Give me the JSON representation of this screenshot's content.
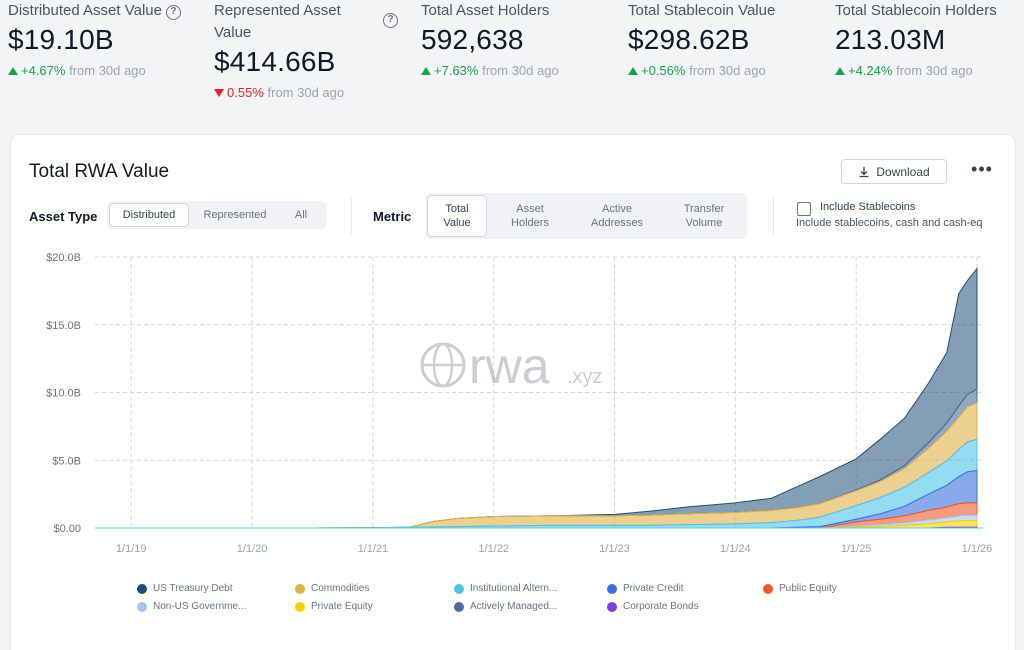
{
  "stats": [
    {
      "label": "Distributed Asset Value",
      "has_help": true,
      "value": "$19.10B",
      "direction": "up",
      "change": "+4.67%",
      "suffix": "from 30d ago"
    },
    {
      "label": "Represented Asset Value",
      "has_help": true,
      "value": "$414.66B",
      "direction": "down",
      "change": "0.55%",
      "suffix": "from 30d ago"
    },
    {
      "label": "Total Asset Holders",
      "has_help": false,
      "value": "592,638",
      "direction": "up",
      "change": "+7.63%",
      "suffix": "from 30d ago"
    },
    {
      "label": "Total Stablecoin Value",
      "has_help": false,
      "value": "$298.62B",
      "direction": "up",
      "change": "+0.56%",
      "suffix": "from 30d ago"
    },
    {
      "label": "Total Stablecoin Holders",
      "has_help": false,
      "value": "213.03M",
      "direction": "up",
      "change": "+4.24%",
      "suffix": "from 30d ago"
    }
  ],
  "help_icon": "?",
  "card": {
    "title": "Total RWA Value",
    "download_label": "Download",
    "more_label": "•••"
  },
  "asset_type": {
    "label": "Asset Type",
    "options": [
      "Distributed",
      "Represented",
      "All"
    ],
    "selected": "Distributed"
  },
  "metric": {
    "label": "Metric",
    "options": [
      "Total\nValue",
      "Asset\nHolders",
      "Active\nAddresses",
      "Transfer\nVolume"
    ],
    "selected": "Total\nValue"
  },
  "stablecoins": {
    "title": "Include Stablecoins",
    "subtitle": "Include stablecoins, cash and cash-eq",
    "checked": false
  },
  "watermark": {
    "brand": "rwa",
    "suffix": ".xyz"
  },
  "colors": {
    "up": "#16a34a",
    "down": "#dc2626",
    "us_treasury": "#1f4e79",
    "commodities": "#e0b04a",
    "institutional_alt": "#4fc3e8",
    "private_credit": "#3b6fe0",
    "public_equity": "#f05a28",
    "non_us_gov": "#a9c4ea",
    "private_equity": "#f5d000",
    "actively_managed": "#4a6f9a",
    "corporate_bonds": "#7b3fd8"
  },
  "chart_data": {
    "type": "area",
    "stacked": true,
    "title": "Total RWA Value",
    "xlabel": "",
    "ylabel": "",
    "x_ticks": [
      "1/1/19",
      "1/1/20",
      "1/1/21",
      "1/1/22",
      "1/1/23",
      "1/1/24",
      "1/1/25",
      "1/1/26"
    ],
    "y_ticks": [
      "$0.00",
      "$5.0B",
      "$10.0B",
      "$15.0B",
      "$20.0B"
    ],
    "ylim": [
      0,
      20
    ],
    "xlim": [
      2018.7,
      2026.05
    ],
    "x": [
      2018.7,
      2019.5,
      2020.5,
      2021.0,
      2021.3,
      2021.5,
      2021.7,
      2022.0,
      2022.5,
      2023.0,
      2023.3,
      2023.6,
      2024.0,
      2024.3,
      2024.5,
      2024.7,
      2025.0,
      2025.2,
      2025.4,
      2025.6,
      2025.75,
      2025.85,
      2025.92,
      2026.0
    ],
    "series": [
      {
        "name": "Corporate Bonds",
        "color_key": "corporate_bonds",
        "values": [
          0,
          0,
          0,
          0,
          0,
          0,
          0,
          0,
          0,
          0,
          0,
          0,
          0,
          0,
          0,
          0,
          0,
          0,
          0,
          0,
          0.05,
          0.05,
          0.05,
          0.05
        ]
      },
      {
        "name": "Private Equity",
        "color_key": "private_equity",
        "values": [
          0,
          0,
          0,
          0,
          0,
          0,
          0,
          0,
          0,
          0,
          0,
          0,
          0,
          0,
          0,
          0,
          0.05,
          0.1,
          0.2,
          0.3,
          0.4,
          0.5,
          0.5,
          0.5
        ]
      },
      {
        "name": "Non-US Government Debt",
        "color_key": "non_us_gov",
        "values": [
          0,
          0,
          0,
          0,
          0,
          0,
          0,
          0,
          0,
          0,
          0,
          0,
          0,
          0,
          0,
          0,
          0.1,
          0.15,
          0.2,
          0.3,
          0.3,
          0.35,
          0.4,
          0.4
        ]
      },
      {
        "name": "Public Equity",
        "color_key": "public_equity",
        "values": [
          0,
          0,
          0,
          0,
          0,
          0,
          0,
          0,
          0,
          0,
          0,
          0,
          0,
          0,
          0,
          0,
          0.3,
          0.4,
          0.5,
          0.7,
          0.8,
          0.9,
          0.9,
          0.9
        ]
      },
      {
        "name": "Private Credit",
        "color_key": "private_credit",
        "values": [
          0,
          0,
          0,
          0,
          0,
          0,
          0,
          0,
          0,
          0,
          0,
          0,
          0,
          0,
          0.05,
          0.1,
          0.2,
          0.4,
          0.7,
          1.2,
          1.6,
          2.0,
          2.3,
          2.4
        ]
      },
      {
        "name": "Institutional Alternative Funds",
        "color_key": "institutional_alt",
        "values": [
          0,
          0,
          0,
          0.02,
          0.05,
          0.08,
          0.1,
          0.15,
          0.2,
          0.2,
          0.2,
          0.25,
          0.3,
          0.4,
          0.5,
          0.7,
          1.0,
          1.2,
          1.4,
          1.6,
          1.8,
          2.0,
          2.2,
          2.3
        ]
      },
      {
        "name": "Commodities",
        "color_key": "commodities",
        "values": [
          0,
          0,
          0,
          0,
          0,
          0.4,
          0.6,
          0.7,
          0.7,
          0.7,
          0.75,
          0.8,
          0.85,
          0.9,
          0.95,
          1.0,
          1.1,
          1.2,
          1.4,
          1.8,
          2.2,
          2.4,
          2.6,
          2.7
        ]
      },
      {
        "name": "Actively Managed Strategies",
        "color_key": "actively_managed",
        "values": [
          0,
          0,
          0,
          0,
          0,
          0,
          0,
          0,
          0,
          0,
          0,
          0,
          0,
          0,
          0,
          0,
          0.05,
          0.1,
          0.2,
          0.4,
          0.6,
          0.8,
          0.9,
          1.0
        ]
      },
      {
        "name": "US Treasury Debt",
        "color_key": "us_treasury",
        "values": [
          0,
          0,
          0,
          0,
          0,
          0,
          0,
          0,
          0,
          0.1,
          0.3,
          0.5,
          0.7,
          0.9,
          1.5,
          2.0,
          2.3,
          3.0,
          3.5,
          4.4,
          5.2,
          8.3,
          8.4,
          8.9
        ]
      }
    ]
  },
  "legend": [
    {
      "name": "US Treasury Debt",
      "color_key": "us_treasury"
    },
    {
      "name": "Commodities",
      "color_key": "commodities"
    },
    {
      "name": "Institutional Altern...",
      "color_key": "institutional_alt"
    },
    {
      "name": "Private Credit",
      "color_key": "private_credit"
    },
    {
      "name": "Public Equity",
      "color_key": "public_equity"
    },
    {
      "name": "Non-US Governme...",
      "color_key": "non_us_gov"
    },
    {
      "name": "Private Equity",
      "color_key": "private_equity"
    },
    {
      "name": "Actively Managed...",
      "color_key": "actively_managed"
    },
    {
      "name": "Corporate Bonds",
      "color_key": "corporate_bonds"
    }
  ]
}
